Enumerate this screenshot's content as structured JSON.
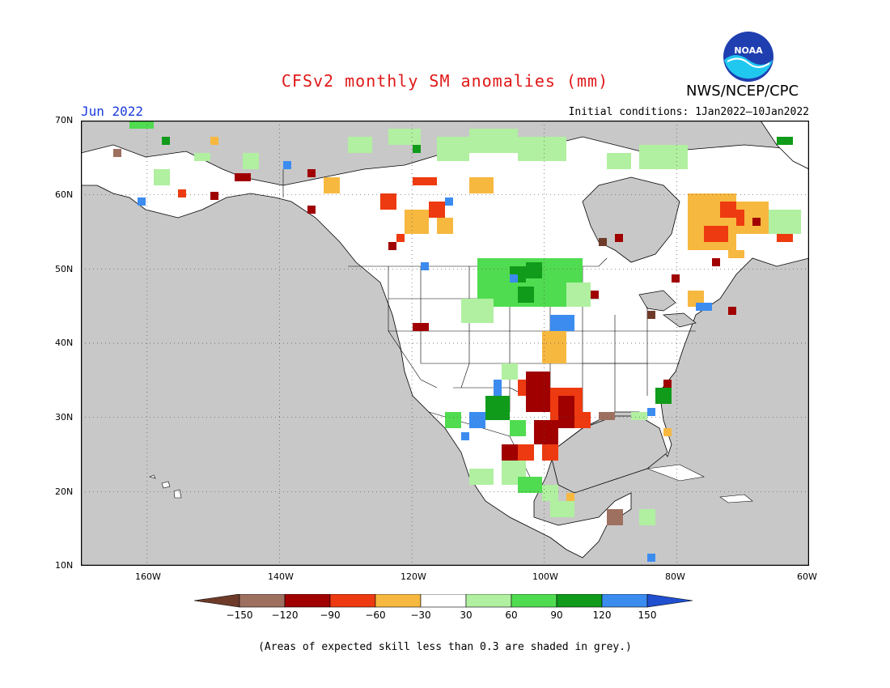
{
  "title": "CFSv2 monthly SM anomalies (mm)",
  "organization": "NWS/NCEP/CPC",
  "logo_text": "NOAA",
  "month": "Jun 2022",
  "initial_conditions": "Initial conditions: 1Jan2022–10Jan2022",
  "note": "(Areas of expected skill less than 0.3 are shaded in grey.)",
  "map": {
    "lon_range": [
      -170,
      -60
    ],
    "lat_range": [
      10,
      70
    ],
    "lat_labels": [
      "70N",
      "60N",
      "50N",
      "40N",
      "30N",
      "20N",
      "10N"
    ],
    "lon_labels": [
      "160W",
      "140W",
      "120W",
      "100W",
      "80W",
      "60W"
    ],
    "ocean_color": "#c8c8c8",
    "grid": "dotted"
  },
  "legend": {
    "thresholds": [
      "−150",
      "−120",
      "−90",
      "−60",
      "−30",
      "30",
      "60",
      "90",
      "120",
      "150"
    ],
    "colors": [
      "#6e3b2a",
      "#9e7060",
      "#a00000",
      "#ee3a10",
      "#f7b840",
      "#ffffff",
      "#b0f0a0",
      "#50dc50",
      "#109b1a",
      "#3c8cf0",
      "#2050d0"
    ]
  }
}
